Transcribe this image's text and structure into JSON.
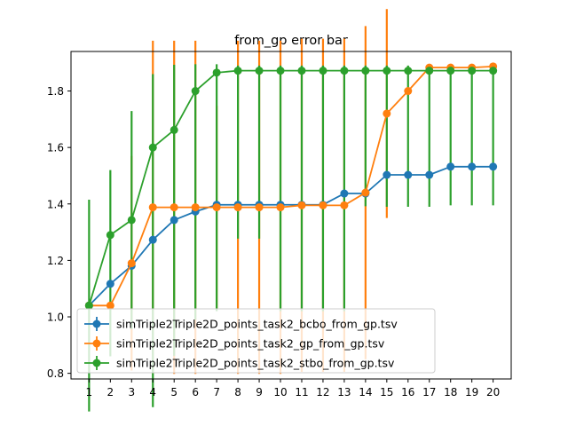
{
  "chart_data": {
    "type": "line",
    "title": "from_gp error bar",
    "xlabel": "",
    "ylabel": "",
    "x": [
      1,
      2,
      3,
      4,
      5,
      6,
      7,
      8,
      9,
      10,
      11,
      12,
      13,
      14,
      15,
      16,
      17,
      18,
      19,
      20
    ],
    "xticks": [
      "1",
      "2",
      "3",
      "4",
      "5",
      "6",
      "7",
      "8",
      "9",
      "10",
      "11",
      "12",
      "13",
      "14",
      "15",
      "16",
      "17",
      "18",
      "19",
      "20"
    ],
    "xlim": [
      0.15,
      20.85
    ],
    "ylim": [
      0.78,
      1.94
    ],
    "yticks": [
      "0.8",
      "1.0",
      "1.2",
      "1.4",
      "1.6",
      "1.8"
    ],
    "grid": false,
    "legend_position": "lower-left",
    "series": [
      {
        "name": "simTriple2Triple2D_points_task2_bcbo_from_gp.tsv",
        "color": "#1f77b4",
        "values": [
          1.04,
          1.117,
          1.181,
          1.273,
          1.343,
          1.373,
          1.397,
          1.397,
          1.397,
          1.397,
          1.397,
          1.397,
          1.437,
          1.437,
          1.503,
          1.503,
          1.503,
          1.532,
          1.532,
          1.532
        ],
        "errors": [
          0,
          0,
          0,
          0,
          0,
          0,
          0,
          0,
          0,
          0,
          0,
          0,
          0,
          0,
          0,
          0,
          0,
          0,
          0,
          0
        ]
      },
      {
        "name": "simTriple2Triple2D_points_task2_gp_from_gp.tsv",
        "color": "#ff7f0e",
        "values": [
          1.04,
          1.04,
          1.19,
          1.388,
          1.388,
          1.388,
          1.388,
          1.388,
          1.388,
          1.388,
          1.395,
          1.395,
          1.395,
          1.44,
          1.72,
          1.8,
          1.883,
          1.883,
          1.883,
          1.887
        ],
        "errors": [
          0,
          0,
          0.38,
          0.59,
          0.59,
          0.59,
          0.36,
          0.59,
          0.59,
          0.59,
          0.59,
          0.59,
          0.59,
          0.59,
          0.37,
          0,
          0,
          0,
          0,
          0
        ]
      },
      {
        "name": "simTriple2Triple2D_points_task2_stbo_from_gp.tsv",
        "color": "#2ca02c",
        "values": [
          1.04,
          1.29,
          1.343,
          1.6,
          1.662,
          1.8,
          1.865,
          1.872,
          1.872,
          1.872,
          1.872,
          1.872,
          1.872,
          1.872,
          1.872,
          1.872,
          1.872,
          1.872,
          1.872,
          1.872
        ],
        "errors": [
          0.375,
          0.23,
          0.386,
          0.26,
          0.231,
          0.095,
          0.03,
          0.018,
          0.018,
          0.018,
          0.018,
          0.018,
          0.018,
          0.018,
          0.018,
          0.018,
          0.018,
          0.018,
          0.018,
          0.018
        ],
        "errors_low": [
          0.375,
          0.43,
          0.386,
          0.92,
          0.8,
          0.81,
          0.845,
          0.595,
          0.595,
          0.852,
          0.852,
          0.852,
          0.852,
          0.48,
          0.482,
          0.482,
          0.482,
          0.477,
          0.477,
          0.477
        ]
      }
    ]
  }
}
